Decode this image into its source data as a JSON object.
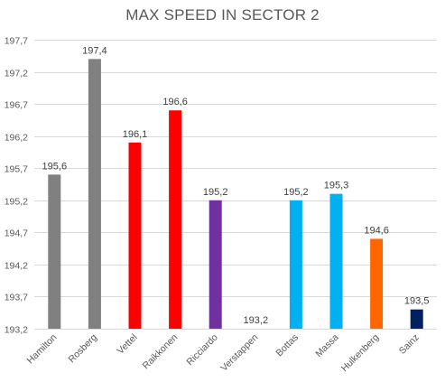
{
  "chart_data": {
    "type": "bar",
    "title": "MAX SPEED IN SECTOR 2",
    "xlabel": "",
    "ylabel": "",
    "categories": [
      "Hamilton",
      "Rosberg",
      "Vettel",
      "Raikkonen",
      "Ricciardo",
      "Verstappen",
      "Bottas",
      "Massa",
      "Hulkenberg",
      "Sainz"
    ],
    "values": [
      195.6,
      197.4,
      196.1,
      196.6,
      195.2,
      193.2,
      195.2,
      195.3,
      194.6,
      193.5
    ],
    "data_labels": [
      "195,6",
      "197,4",
      "196,1",
      "196,6",
      "195,2",
      "193,2",
      "195,2",
      "195,3",
      "194,6",
      "193,5"
    ],
    "colors": [
      "#808080",
      "#808080",
      "#ff0000",
      "#ff0000",
      "#7030a0",
      "#1f3864",
      "#00b0f0",
      "#00b0f0",
      "#ff6600",
      "#002060"
    ],
    "ylim": [
      193.2,
      197.7
    ],
    "yticks": [
      193.2,
      193.7,
      194.2,
      194.7,
      195.2,
      195.7,
      196.2,
      196.7,
      197.2,
      197.7
    ],
    "ytick_labels": [
      "193,2",
      "193,7",
      "194,2",
      "194,7",
      "195,2",
      "195,7",
      "196,2",
      "196,7",
      "197,2",
      "197,7"
    ],
    "grid": true,
    "legend": "none"
  }
}
